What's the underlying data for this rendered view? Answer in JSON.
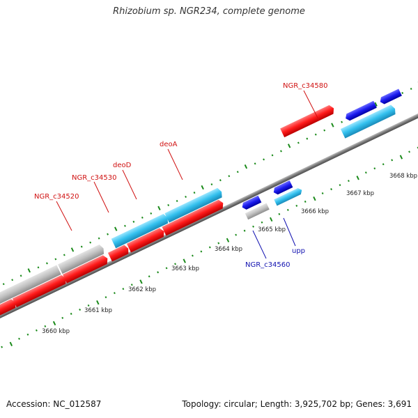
{
  "title": "Rhizobium sp. NGR234, complete genome",
  "footer": {
    "accession": "Accession: NC_012587",
    "summary": "Topology: circular; Length: 3,925,702 bp; Genes: 3,691"
  },
  "colors": {
    "forward_cds": "#ff2020",
    "reverse_cds": "#1a1aee",
    "rna_feature": "#33c0ee",
    "pseudo_feature": "#bcbcbc",
    "backbone": "#7a7a7a",
    "tick": "#1a8a1a",
    "label_forward": "#d01010",
    "label_reverse": "#1010b0"
  },
  "scale_labels": [
    "3660 kbp",
    "3661 kbp",
    "3662 kbp",
    "3663 kbp",
    "3664 kbp",
    "3665 kbp",
    "3666 kbp",
    "3667 kbp",
    "3668 kbp"
  ],
  "gene_labels": [
    {
      "text": "NGR_c34520",
      "strand": "forward"
    },
    {
      "text": "NGR_c34530",
      "strand": "forward"
    },
    {
      "text": "deoD",
      "strand": "forward"
    },
    {
      "text": "deoA",
      "strand": "forward"
    },
    {
      "text": "NGR_c34580",
      "strand": "forward"
    },
    {
      "text": "NGR_c34560",
      "strand": "reverse"
    },
    {
      "text": "upp",
      "strand": "reverse"
    }
  ]
}
